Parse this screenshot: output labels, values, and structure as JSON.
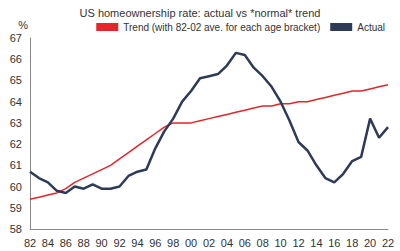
{
  "chart_data": {
    "type": "line",
    "title": "US homeownership rate: actual vs *normal* trend",
    "ylabel": "%",
    "categories": [
      "82",
      null,
      "84",
      null,
      "86",
      null,
      "88",
      null,
      "90",
      null,
      "92",
      null,
      "94",
      null,
      "96",
      null,
      "98",
      null,
      "00",
      null,
      "02",
      null,
      "04",
      null,
      "06",
      null,
      "08",
      null,
      "10",
      null,
      "12",
      null,
      "14",
      null,
      "16",
      null,
      "18",
      null,
      "20",
      null,
      "22"
    ],
    "series": [
      {
        "name": "Trend (with 82-02 ave. for each age bracket)",
        "color": "#e3262b",
        "values": [
          59.4,
          59.5,
          59.6,
          59.7,
          59.9,
          60.2,
          60.4,
          60.6,
          60.8,
          61.0,
          61.3,
          61.6,
          61.9,
          62.2,
          62.5,
          62.8,
          63.0,
          63.0,
          63.0,
          63.1,
          63.2,
          63.3,
          63.4,
          63.5,
          63.6,
          63.7,
          63.8,
          63.8,
          63.9,
          63.9,
          64.0,
          64.0,
          64.1,
          64.2,
          64.3,
          64.4,
          64.5,
          64.5,
          64.6,
          64.7,
          64.8
        ]
      },
      {
        "name": "Actual",
        "color": "#2e3b58",
        "values": [
          60.7,
          60.4,
          60.2,
          59.8,
          59.7,
          60.0,
          59.9,
          60.1,
          59.9,
          59.9,
          60.0,
          60.5,
          60.7,
          60.8,
          61.8,
          62.6,
          63.2,
          64.0,
          64.5,
          65.1,
          65.2,
          65.3,
          65.7,
          66.3,
          66.2,
          65.6,
          65.2,
          64.7,
          64.0,
          63.1,
          62.1,
          61.7,
          61.0,
          60.4,
          60.2,
          60.6,
          61.2,
          61.4,
          63.2,
          62.3,
          62.8
        ]
      }
    ],
    "ylim": [
      58,
      67
    ],
    "yticks": [
      58,
      59,
      60,
      61,
      62,
      63,
      64,
      65,
      66,
      67
    ],
    "grid": false,
    "legend": "top"
  }
}
